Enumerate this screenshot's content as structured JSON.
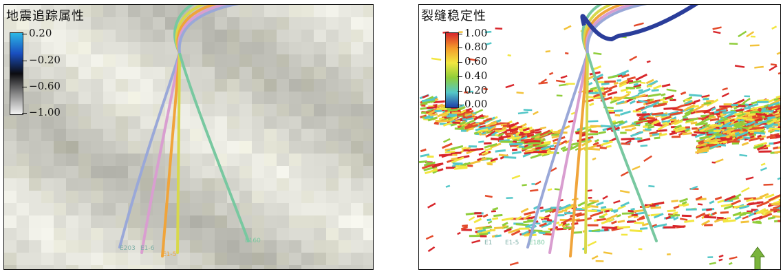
{
  "left_panel": {
    "title": "地震追踪属性",
    "colorbar": {
      "stops": [
        "#2bb7e6",
        "#1a4fc0",
        "#0c0c10",
        "#888888",
        "#f4f4f4"
      ],
      "ticks": [
        "0.20",
        "−0.20",
        "−0.60",
        "−1.00"
      ]
    },
    "well_labels": [
      "E203",
      "E1-6",
      "E1-5",
      "E160"
    ]
  },
  "right_panel": {
    "title": "裂缝稳定性",
    "colorbar": {
      "stops": [
        "#d8262b",
        "#f39a2a",
        "#f2e640",
        "#8fcd3a",
        "#54c7c8",
        "#1e3ea8"
      ],
      "ticks": [
        "1.00",
        "0.80",
        "0.60",
        "0.40",
        "0.20",
        "0.00"
      ]
    },
    "well_labels": [
      "E1",
      "E1-5",
      "E180"
    ]
  },
  "colors": {
    "well_blue": "#9aa8d8",
    "well_pink": "#d99ed0",
    "well_orange": "#f0a43a",
    "well_yellow": "#d8d84a",
    "well_green": "#78c8a0",
    "well_navy": "#2a3d9a",
    "arrow_green": "#7ab43c"
  }
}
